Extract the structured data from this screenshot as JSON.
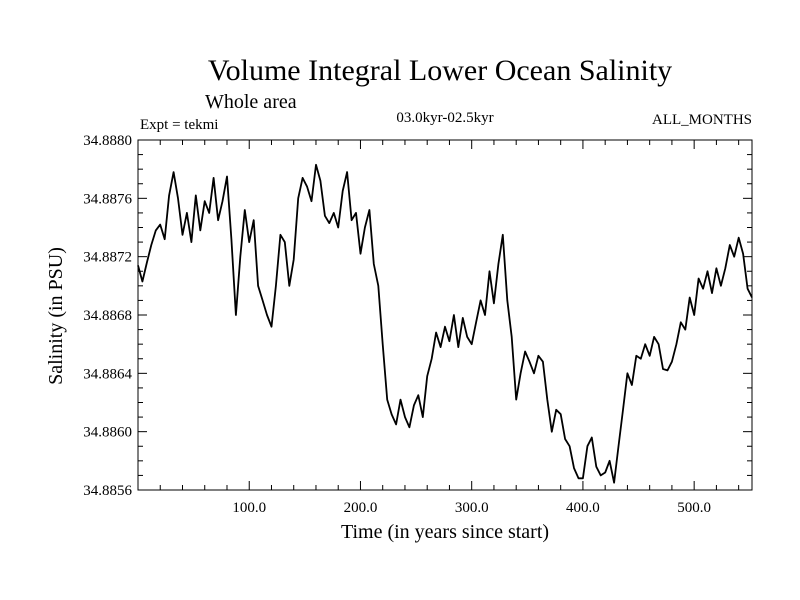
{
  "chart_data": {
    "type": "line",
    "title": "Volume Integral Lower Ocean Salinity",
    "subtitle": "Whole area",
    "header_left": "Expt = tekmi",
    "header_center": "03.0kyr-02.5kyr",
    "header_right": "ALL_MONTHS",
    "xlabel": "Time (in years since start)",
    "ylabel": "Salinity (in PSU)",
    "xlim": [
      0,
      552
    ],
    "ylim": [
      34.8856,
      34.888
    ],
    "xticks": [
      100,
      200,
      300,
      400,
      500
    ],
    "xtick_labels": [
      "100.0",
      "200.0",
      "300.0",
      "400.0",
      "500.0"
    ],
    "yticks": [
      34.8856,
      34.886,
      34.8864,
      34.8868,
      34.8872,
      34.8876,
      34.888
    ],
    "ytick_labels": [
      "34.8856",
      "34.8860",
      "34.8864",
      "34.8868",
      "34.8872",
      "34.8876",
      "34.8880"
    ],
    "series": [
      {
        "name": "Volume integral lower ocean salinity",
        "color": "#000000",
        "points": [
          [
            0,
            34.88714
          ],
          [
            4,
            34.88703
          ],
          [
            8,
            34.88716
          ],
          [
            12,
            34.88728
          ],
          [
            16,
            34.88738
          ],
          [
            20,
            34.88742
          ],
          [
            24,
            34.88732
          ],
          [
            28,
            34.88762
          ],
          [
            32,
            34.88778
          ],
          [
            36,
            34.8876
          ],
          [
            40,
            34.88735
          ],
          [
            44,
            34.8875
          ],
          [
            48,
            34.8873
          ],
          [
            52,
            34.88762
          ],
          [
            56,
            34.88738
          ],
          [
            60,
            34.88758
          ],
          [
            64,
            34.8875
          ],
          [
            68,
            34.88774
          ],
          [
            72,
            34.88745
          ],
          [
            76,
            34.88758
          ],
          [
            80,
            34.88775
          ],
          [
            84,
            34.88732
          ],
          [
            88,
            34.8868
          ],
          [
            92,
            34.8872
          ],
          [
            96,
            34.88752
          ],
          [
            100,
            34.8873
          ],
          [
            104,
            34.88745
          ],
          [
            108,
            34.887
          ],
          [
            112,
            34.8869
          ],
          [
            116,
            34.8868
          ],
          [
            120,
            34.88672
          ],
          [
            124,
            34.887
          ],
          [
            128,
            34.88735
          ],
          [
            132,
            34.8873
          ],
          [
            136,
            34.887
          ],
          [
            140,
            34.88718
          ],
          [
            144,
            34.8876
          ],
          [
            148,
            34.88774
          ],
          [
            152,
            34.88768
          ],
          [
            156,
            34.88758
          ],
          [
            160,
            34.88783
          ],
          [
            164,
            34.88772
          ],
          [
            168,
            34.88748
          ],
          [
            172,
            34.88743
          ],
          [
            176,
            34.8875
          ],
          [
            180,
            34.8874
          ],
          [
            184,
            34.88765
          ],
          [
            188,
            34.88778
          ],
          [
            192,
            34.88745
          ],
          [
            196,
            34.8875
          ],
          [
            200,
            34.88722
          ],
          [
            204,
            34.8874
          ],
          [
            208,
            34.88752
          ],
          [
            212,
            34.88715
          ],
          [
            216,
            34.887
          ],
          [
            220,
            34.8866
          ],
          [
            224,
            34.88622
          ],
          [
            228,
            34.88612
          ],
          [
            232,
            34.88605
          ],
          [
            236,
            34.88622
          ],
          [
            240,
            34.8861
          ],
          [
            244,
            34.88603
          ],
          [
            248,
            34.88618
          ],
          [
            252,
            34.88625
          ],
          [
            256,
            34.8861
          ],
          [
            260,
            34.88638
          ],
          [
            264,
            34.8865
          ],
          [
            268,
            34.88668
          ],
          [
            272,
            34.88658
          ],
          [
            276,
            34.88672
          ],
          [
            280,
            34.88662
          ],
          [
            284,
            34.8868
          ],
          [
            288,
            34.88658
          ],
          [
            292,
            34.88678
          ],
          [
            296,
            34.88665
          ],
          [
            300,
            34.8866
          ],
          [
            304,
            34.88675
          ],
          [
            308,
            34.8869
          ],
          [
            312,
            34.8868
          ],
          [
            316,
            34.8871
          ],
          [
            320,
            34.88688
          ],
          [
            324,
            34.88715
          ],
          [
            328,
            34.88735
          ],
          [
            332,
            34.8869
          ],
          [
            336,
            34.88665
          ],
          [
            340,
            34.88622
          ],
          [
            344,
            34.8864
          ],
          [
            348,
            34.88655
          ],
          [
            352,
            34.88648
          ],
          [
            356,
            34.8864
          ],
          [
            360,
            34.88652
          ],
          [
            364,
            34.88648
          ],
          [
            368,
            34.88622
          ],
          [
            372,
            34.886
          ],
          [
            376,
            34.88615
          ],
          [
            380,
            34.88612
          ],
          [
            384,
            34.88595
          ],
          [
            388,
            34.8859
          ],
          [
            392,
            34.88575
          ],
          [
            396,
            34.88568
          ],
          [
            400,
            34.88568
          ],
          [
            404,
            34.8859
          ],
          [
            408,
            34.88596
          ],
          [
            412,
            34.88576
          ],
          [
            416,
            34.8857
          ],
          [
            420,
            34.88572
          ],
          [
            424,
            34.8858
          ],
          [
            428,
            34.88565
          ],
          [
            432,
            34.8859
          ],
          [
            436,
            34.88615
          ],
          [
            440,
            34.8864
          ],
          [
            444,
            34.88632
          ],
          [
            448,
            34.88652
          ],
          [
            452,
            34.8865
          ],
          [
            456,
            34.8866
          ],
          [
            460,
            34.88652
          ],
          [
            464,
            34.88665
          ],
          [
            468,
            34.8866
          ],
          [
            472,
            34.88643
          ],
          [
            476,
            34.88642
          ],
          [
            480,
            34.88648
          ],
          [
            484,
            34.8866
          ],
          [
            488,
            34.88675
          ],
          [
            492,
            34.8867
          ],
          [
            496,
            34.88692
          ],
          [
            500,
            34.8868
          ],
          [
            504,
            34.88705
          ],
          [
            508,
            34.88698
          ],
          [
            512,
            34.8871
          ],
          [
            516,
            34.88695
          ],
          [
            520,
            34.88712
          ],
          [
            524,
            34.887
          ],
          [
            528,
            34.88712
          ],
          [
            532,
            34.88728
          ],
          [
            536,
            34.8872
          ],
          [
            540,
            34.88733
          ],
          [
            544,
            34.88722
          ],
          [
            548,
            34.88698
          ],
          [
            552,
            34.88692
          ]
        ]
      }
    ]
  }
}
